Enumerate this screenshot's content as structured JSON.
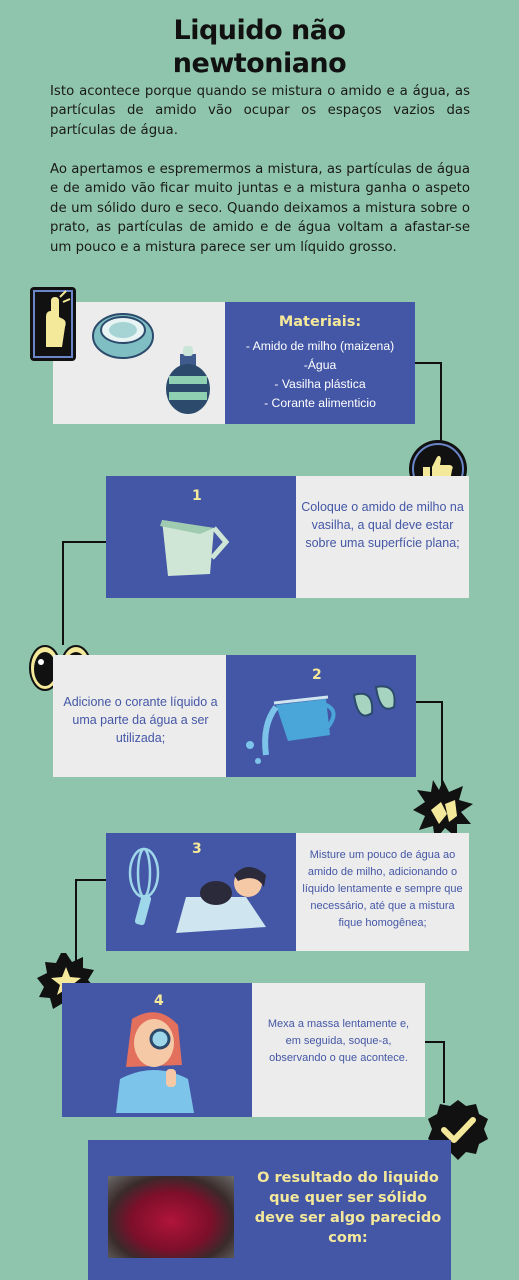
{
  "title_line1": "Liquido não",
  "title_line2": "newtoniano",
  "intro_p1": "Isto acontece porque quando se mistura o amido e a água, as partículas de amido vão ocupar os espaços vazios das partículas de água.",
  "intro_p2": "Ao apertamos e espremermos a mistura, as partículas de água e de amido vão ficar muito juntas e a mistura ganha o aspeto de um sólido duro e seco. Quando deixamos a mistura sobre o prato, as partículas de amido e de água voltam a afastar-se um pouco e a mistura parece ser um líquido grosso.",
  "materials": {
    "heading": "Materiais:",
    "items": [
      "- Amido de milho (maizena)",
      "-Água",
      "- Vasilha plástica",
      "- Corante alimenticio"
    ]
  },
  "steps": [
    {
      "number": "1",
      "text": "Coloque o amido de milho na vasilha, a qual deve estar sobre uma superfície plana;"
    },
    {
      "number": "2",
      "text": "Adicione o corante líquido a uma parte da água a ser utilizada;"
    },
    {
      "number": "3",
      "text": "Misture um pouco de água ao amido de milho, adicionando o líquido lentamente e sempre que necessário, até que a mistura fique homogênea;"
    },
    {
      "number": "4",
      "text": "Mexa a massa lentamente e, em seguida, soque-a, observando o que acontece."
    }
  ],
  "result_text": "O resultado do liquido que quer ser sólido deve ser algo parecido com:",
  "colors": {
    "background": "#8fc5ac",
    "panel_dark": "#4457a6",
    "panel_light": "#ececec",
    "accent_yellow": "#f4e89a"
  }
}
